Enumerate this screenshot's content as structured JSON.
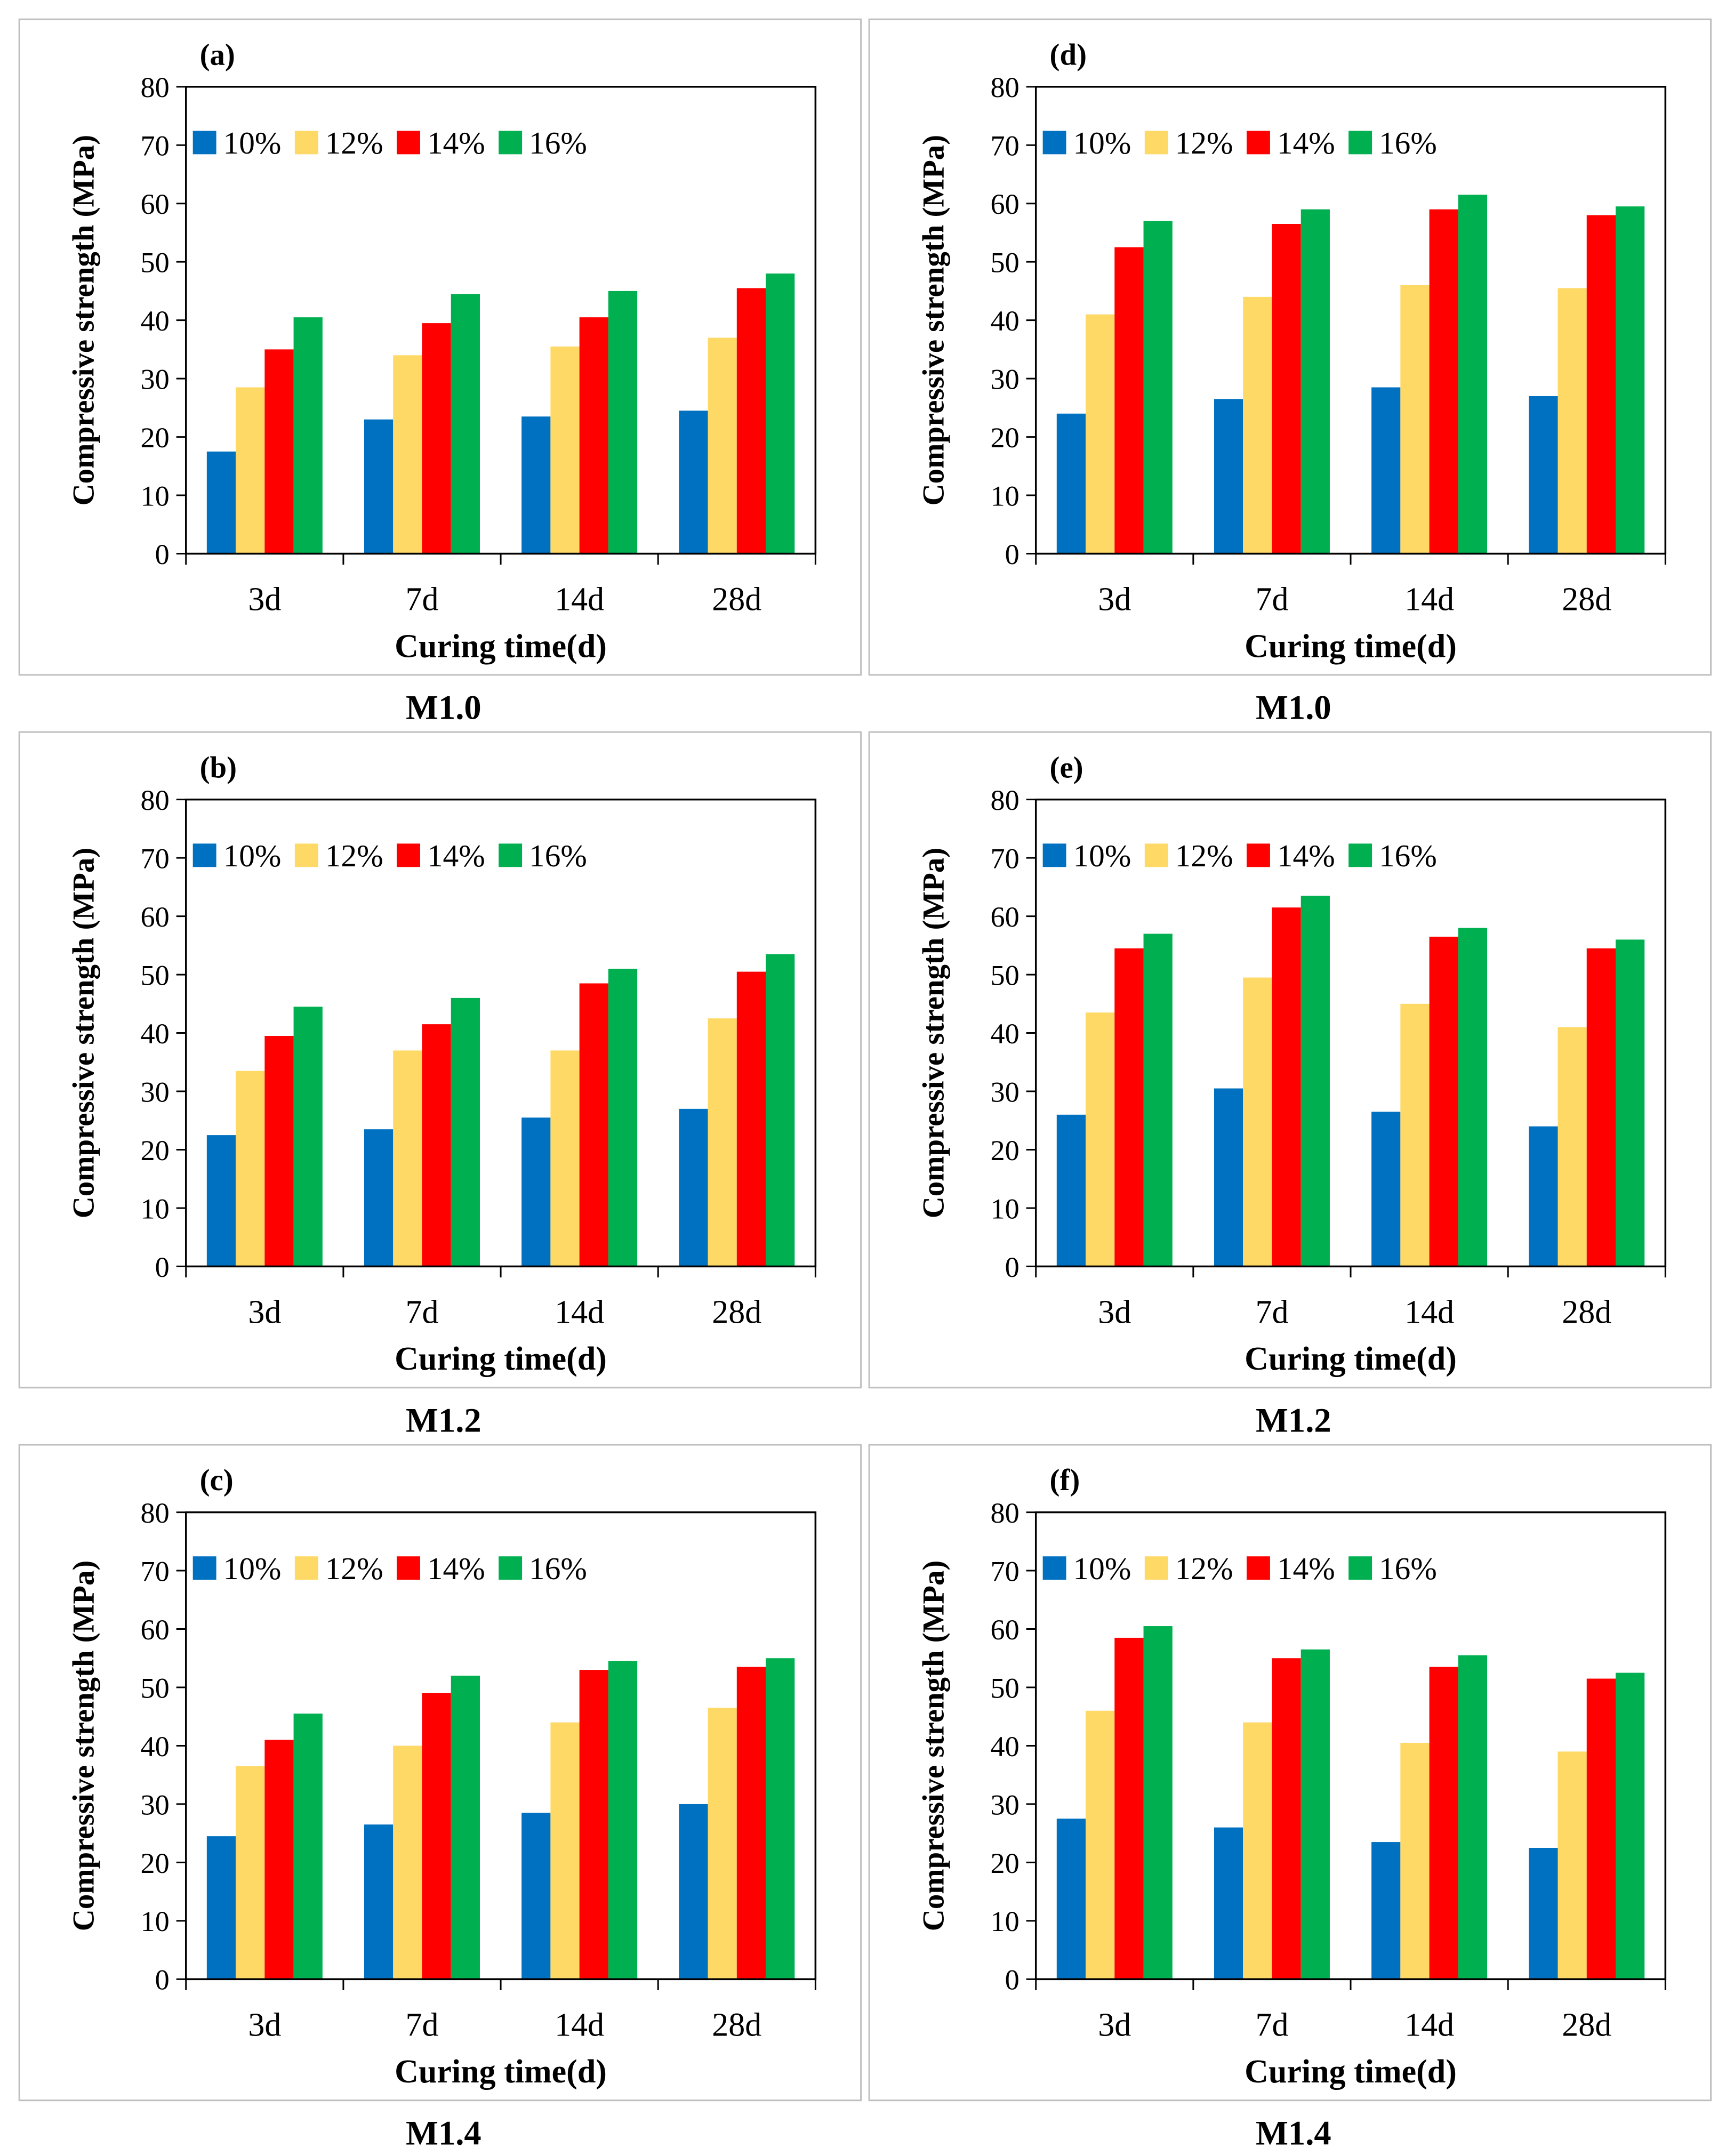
{
  "figure": {
    "series_colors": [
      "#0070C0",
      "#FFD966",
      "#FF0000",
      "#00B050"
    ],
    "frame_color": "#bfbfbf"
  },
  "chart_data": [
    {
      "type": "bar",
      "panel_label": "(a)",
      "caption": "M1.0",
      "categories": [
        "3d",
        "7d",
        "14d",
        "28d"
      ],
      "series": [
        {
          "name": "10%",
          "values": [
            17.5,
            23,
            23.5,
            24.5
          ]
        },
        {
          "name": "12%",
          "values": [
            28.5,
            34,
            35.5,
            37
          ]
        },
        {
          "name": "14%",
          "values": [
            35,
            39.5,
            40.5,
            45.5
          ]
        },
        {
          "name": "16%",
          "values": [
            40.5,
            44.5,
            45,
            48
          ]
        }
      ],
      "xlabel": "Curing  time(d)",
      "ylabel": "Compressive strength (MPa)",
      "ylim": [
        0,
        80
      ],
      "yticks": [
        0,
        10,
        20,
        30,
        40,
        50,
        60,
        70,
        80
      ],
      "legend": "top-left"
    },
    {
      "type": "bar",
      "panel_label": "(d)",
      "caption": "M1.0",
      "categories": [
        "3d",
        "7d",
        "14d",
        "28d"
      ],
      "series": [
        {
          "name": "10%",
          "values": [
            24,
            26.5,
            28.5,
            27
          ]
        },
        {
          "name": "12%",
          "values": [
            41,
            44,
            46,
            45.5
          ]
        },
        {
          "name": "14%",
          "values": [
            52.5,
            56.5,
            59,
            58
          ]
        },
        {
          "name": "16%",
          "values": [
            57,
            59,
            61.5,
            59.5
          ]
        }
      ],
      "xlabel": "Curing  time(d)",
      "ylabel": "Compressive strength (MPa)",
      "ylim": [
        0,
        80
      ],
      "yticks": [
        0,
        10,
        20,
        30,
        40,
        50,
        60,
        70,
        80
      ],
      "legend": "top-left"
    },
    {
      "type": "bar",
      "panel_label": "(b)",
      "caption": "M1.2",
      "categories": [
        "3d",
        "7d",
        "14d",
        "28d"
      ],
      "series": [
        {
          "name": "10%",
          "values": [
            22.5,
            23.5,
            25.5,
            27
          ]
        },
        {
          "name": "12%",
          "values": [
            33.5,
            37,
            37,
            42.5
          ]
        },
        {
          "name": "14%",
          "values": [
            39.5,
            41.5,
            48.5,
            50.5
          ]
        },
        {
          "name": "16%",
          "values": [
            44.5,
            46,
            51,
            53.5
          ]
        }
      ],
      "xlabel": "Curing  time(d)",
      "ylabel": "Compressive strength (MPa)",
      "ylim": [
        0,
        80
      ],
      "yticks": [
        0,
        10,
        20,
        30,
        40,
        50,
        60,
        70,
        80
      ],
      "legend": "top-left"
    },
    {
      "type": "bar",
      "panel_label": "(e)",
      "caption": "M1.2",
      "categories": [
        "3d",
        "7d",
        "14d",
        "28d"
      ],
      "series": [
        {
          "name": "10%",
          "values": [
            26,
            30.5,
            26.5,
            24
          ]
        },
        {
          "name": "12%",
          "values": [
            43.5,
            49.5,
            45,
            41
          ]
        },
        {
          "name": "14%",
          "values": [
            54.5,
            61.5,
            56.5,
            54.5
          ]
        },
        {
          "name": "16%",
          "values": [
            57,
            63.5,
            58,
            56
          ]
        }
      ],
      "xlabel": "Curing  time(d)",
      "ylabel": "Compressive strength (MPa)",
      "ylim": [
        0,
        80
      ],
      "yticks": [
        0,
        10,
        20,
        30,
        40,
        50,
        60,
        70,
        80
      ],
      "legend": "top-left"
    },
    {
      "type": "bar",
      "panel_label": "(c)",
      "caption": "M1.4",
      "categories": [
        "3d",
        "7d",
        "14d",
        "28d"
      ],
      "series": [
        {
          "name": "10%",
          "values": [
            24.5,
            26.5,
            28.5,
            30
          ]
        },
        {
          "name": "12%",
          "values": [
            36.5,
            40,
            44,
            46.5
          ]
        },
        {
          "name": "14%",
          "values": [
            41,
            49,
            53,
            53.5
          ]
        },
        {
          "name": "16%",
          "values": [
            45.5,
            52,
            54.5,
            55
          ]
        }
      ],
      "xlabel": "Curing  time(d)",
      "ylabel": "Compressive strength (MPa)",
      "ylim": [
        0,
        80
      ],
      "yticks": [
        0,
        10,
        20,
        30,
        40,
        50,
        60,
        70,
        80
      ],
      "legend": "top-left"
    },
    {
      "type": "bar",
      "panel_label": "(f)",
      "caption": "M1.4",
      "categories": [
        "3d",
        "7d",
        "14d",
        "28d"
      ],
      "series": [
        {
          "name": "10%",
          "values": [
            27.5,
            26,
            23.5,
            22.5
          ]
        },
        {
          "name": "12%",
          "values": [
            46,
            44,
            40.5,
            39
          ]
        },
        {
          "name": "14%",
          "values": [
            58.5,
            55,
            53.5,
            51.5
          ]
        },
        {
          "name": "16%",
          "values": [
            60.5,
            56.5,
            55.5,
            52.5
          ]
        }
      ],
      "xlabel": "Curing  time(d)",
      "ylabel": "Compressive strength (MPa)",
      "ylim": [
        0,
        80
      ],
      "yticks": [
        0,
        10,
        20,
        30,
        40,
        50,
        60,
        70,
        80
      ],
      "legend": "top-left"
    }
  ]
}
